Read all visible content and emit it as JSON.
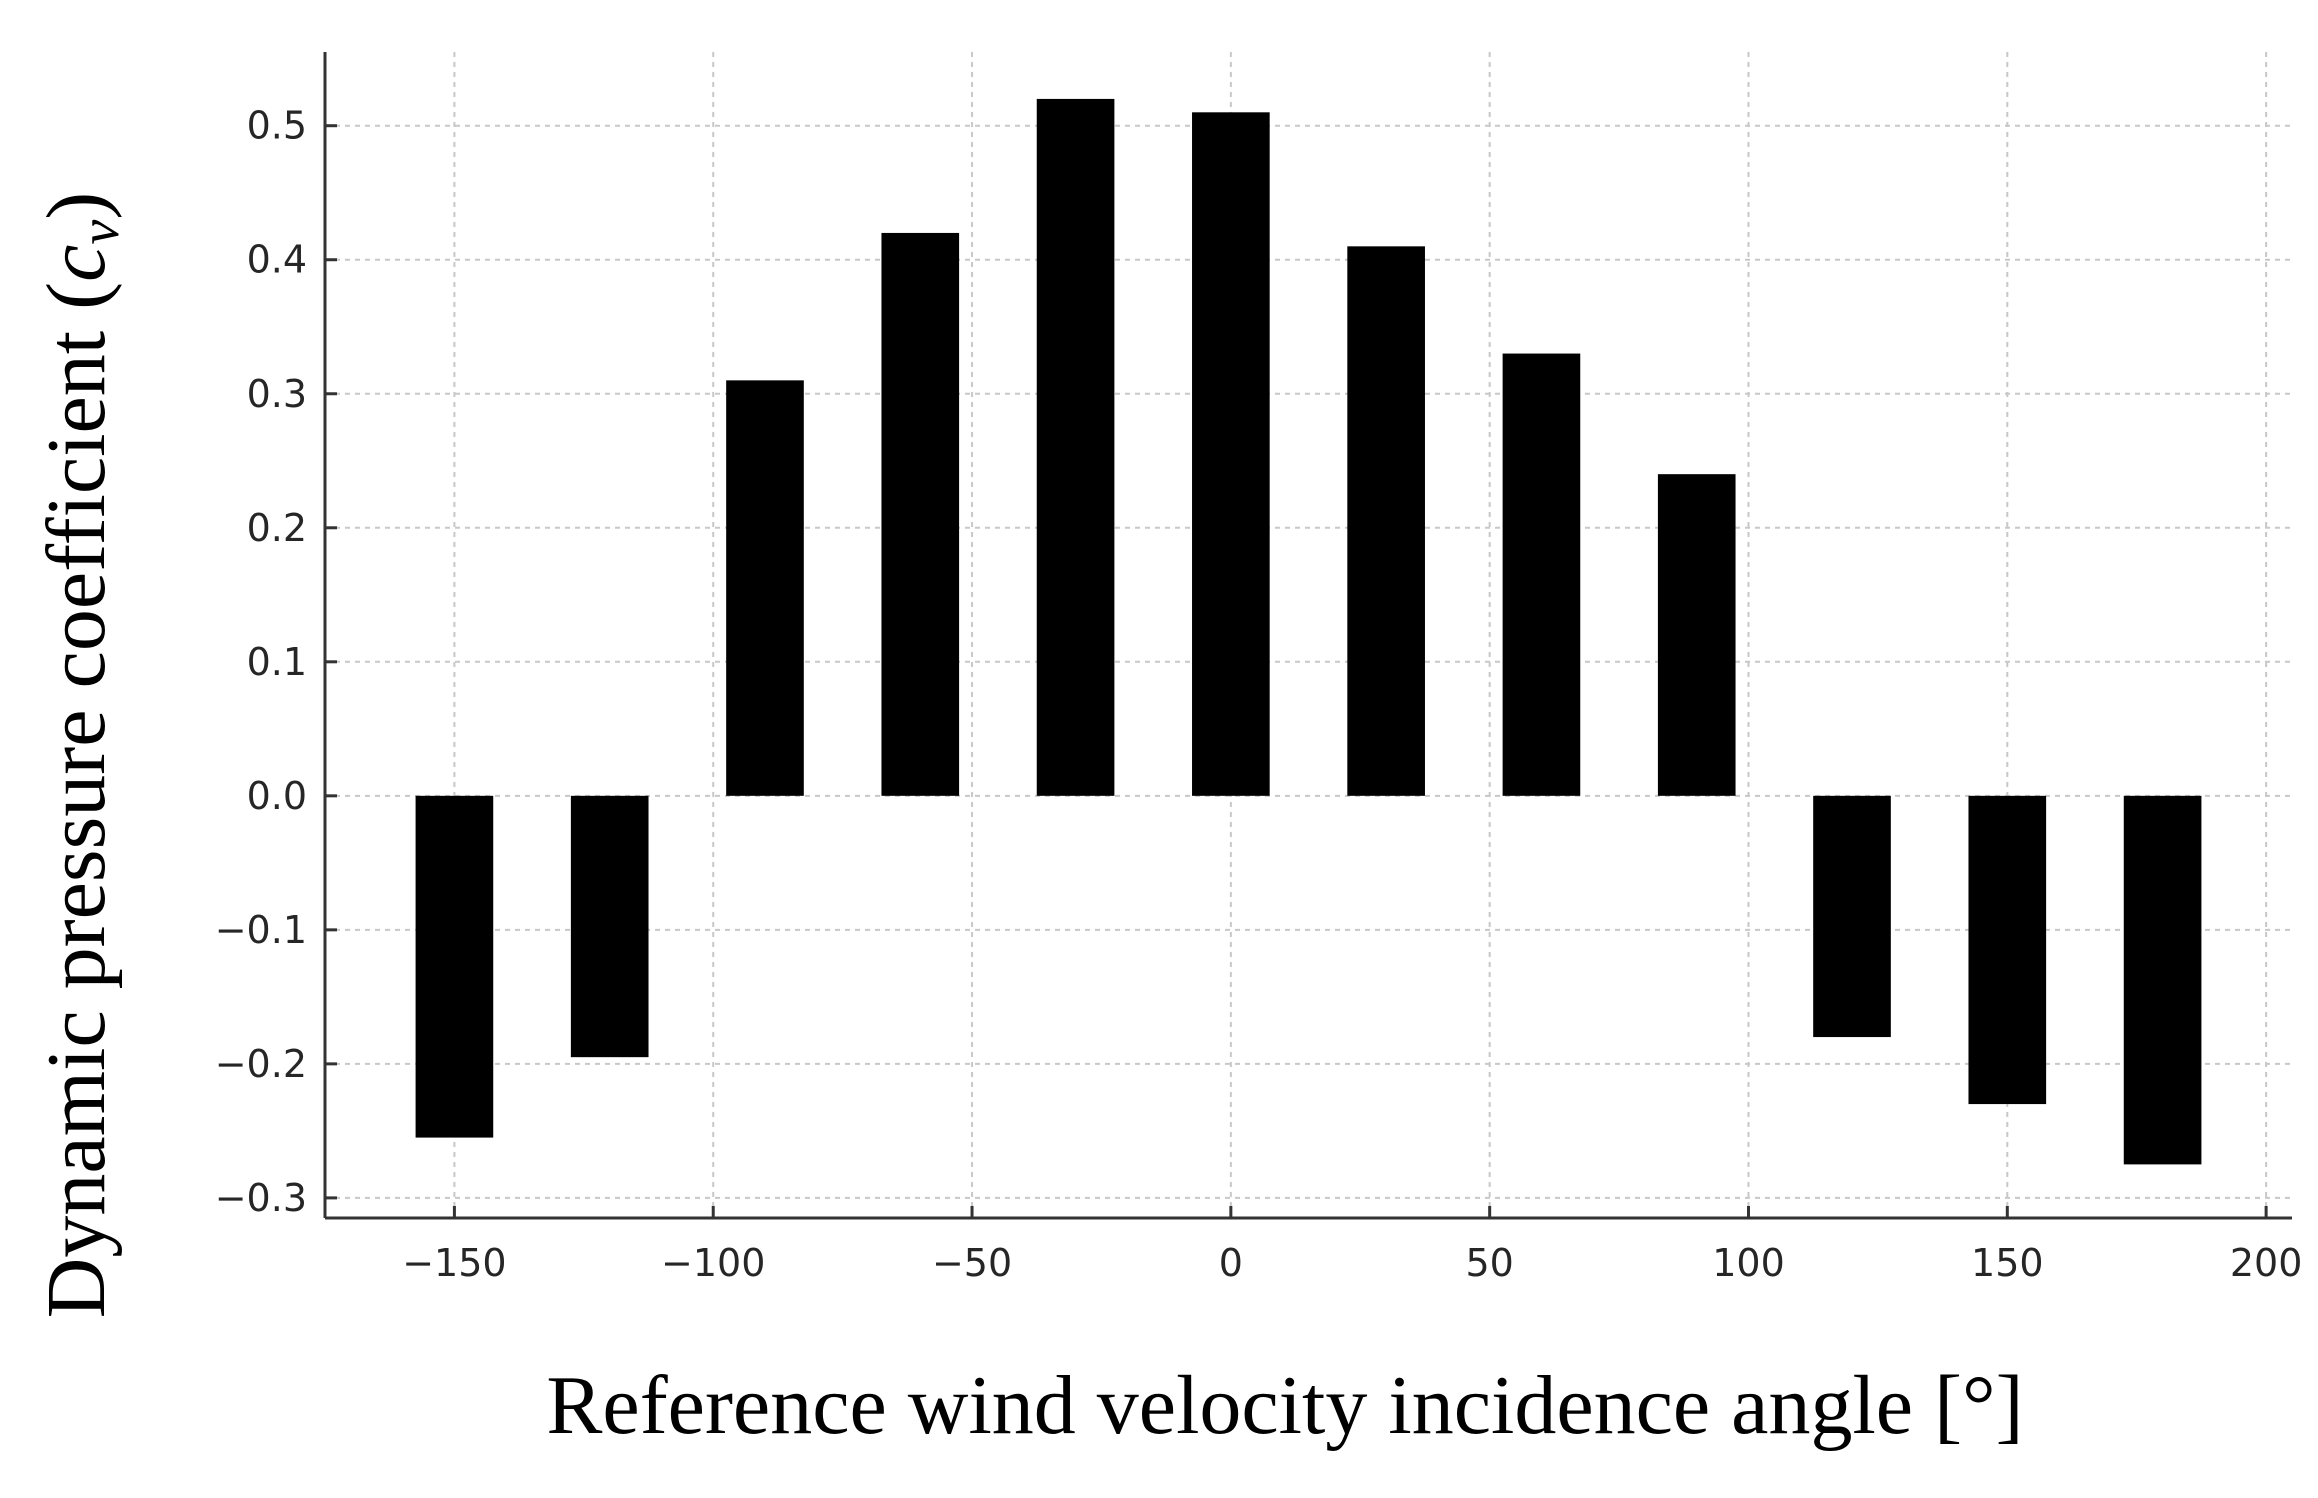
{
  "chart_data": {
    "type": "bar",
    "title": "",
    "xlabel": "Reference wind velocity incidence angle [°]",
    "ylabel_text": "Dynamic pressure coefficient (",
    "ylabel_symbol": "c",
    "ylabel_subscript": "v",
    "ylabel_close": ")",
    "x": [
      -150,
      -120,
      -90,
      -60,
      -30,
      0,
      30,
      60,
      90,
      120,
      150,
      180
    ],
    "values": [
      -0.255,
      -0.195,
      0.31,
      0.42,
      0.52,
      0.51,
      0.41,
      0.33,
      0.24,
      -0.18,
      -0.23,
      -0.275
    ],
    "bar_width": 15,
    "xlim": [
      -175,
      205
    ],
    "ylim": [
      -0.315,
      0.555
    ],
    "xticks": [
      -150,
      -100,
      -50,
      0,
      50,
      100,
      150,
      200
    ],
    "xtick_labels": [
      "−150",
      "−100",
      "−50",
      "0",
      "50",
      "100",
      "150",
      "200"
    ],
    "yticks": [
      -0.3,
      -0.2,
      -0.1,
      0.0,
      0.1,
      0.2,
      0.3,
      0.4,
      0.5
    ],
    "ytick_labels": [
      "−0.3",
      "−0.2",
      "−0.1",
      "0.0",
      "0.1",
      "0.2",
      "0.3",
      "0.4",
      "0.5"
    ],
    "grid": true,
    "legend": "none",
    "bar_color": "#000000",
    "grid_color": "#c8c8c8"
  }
}
